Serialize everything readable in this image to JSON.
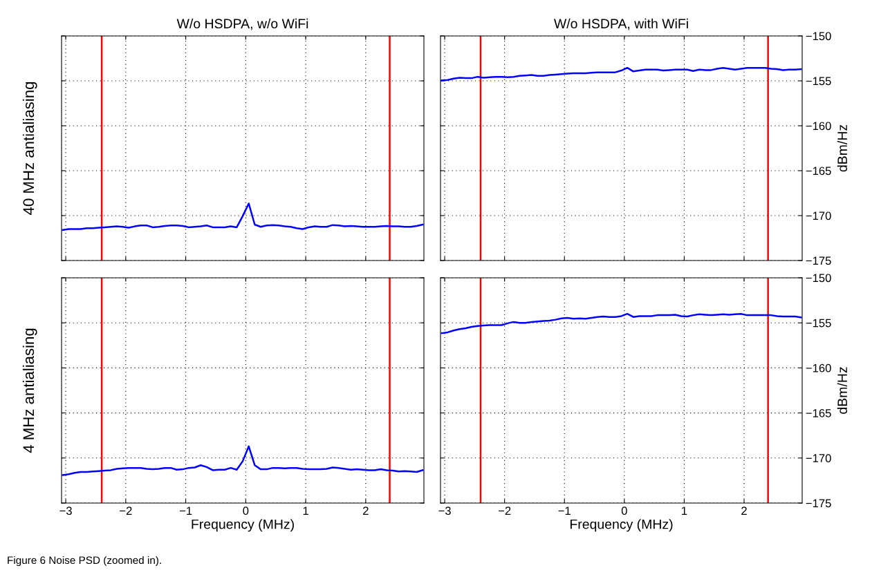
{
  "chart_data": [
    {
      "type": "line",
      "title": "W/o HSDPA, w/o WiFi",
      "ylabel": "40 MHz antialiasing",
      "xlim": [
        -3.07,
        2.97
      ],
      "xticks": [
        -3,
        -2,
        -1,
        0,
        1,
        2
      ],
      "ylim": [
        -175,
        -150
      ],
      "yticks": [
        -175,
        -170,
        -165,
        -160,
        -155,
        -150
      ],
      "tick_labels": false,
      "grid": true,
      "x": [
        -3.05,
        -2.95,
        -2.85,
        -2.75,
        -2.65,
        -2.55,
        -2.45,
        -2.35,
        -2.25,
        -2.15,
        -2.05,
        -1.95,
        -1.85,
        -1.75,
        -1.65,
        -1.55,
        -1.45,
        -1.35,
        -1.25,
        -1.15,
        -1.05,
        -0.95,
        -0.85,
        -0.75,
        -0.65,
        -0.55,
        -0.45,
        -0.35,
        -0.25,
        -0.15,
        -0.05,
        0.05,
        0.15,
        0.25,
        0.35,
        0.45,
        0.55,
        0.65,
        0.75,
        0.85,
        0.95,
        1.05,
        1.15,
        1.25,
        1.35,
        1.45,
        1.55,
        1.65,
        1.75,
        1.85,
        1.95,
        2.05,
        2.15,
        2.25,
        2.35,
        2.45,
        2.55,
        2.65,
        2.75,
        2.85,
        2.95
      ],
      "series": [
        {
          "color": "#0000ff",
          "values": [
            -171.6,
            -171.5,
            -171.5,
            -171.5,
            -171.4,
            -171.4,
            -171.35,
            -171.3,
            -171.25,
            -171.2,
            -171.25,
            -171.35,
            -171.2,
            -171.1,
            -171.1,
            -171.3,
            -171.25,
            -171.15,
            -171.1,
            -171.1,
            -171.15,
            -171.3,
            -171.25,
            -171.2,
            -171.1,
            -171.3,
            -171.3,
            -171.3,
            -171.2,
            -171.3,
            -170.05,
            -168.65,
            -171.0,
            -171.25,
            -171.1,
            -171.05,
            -171.1,
            -171.2,
            -171.25,
            -171.4,
            -171.5,
            -171.3,
            -171.2,
            -171.25,
            -171.25,
            -171.05,
            -171.1,
            -171.2,
            -171.15,
            -171.2,
            -171.25,
            -171.25,
            -171.25,
            -171.2,
            -171.15,
            -171.2,
            -171.2,
            -171.25,
            -171.25,
            -171.15,
            -171.0
          ]
        }
      ],
      "ref_lines": [
        {
          "axis": "x",
          "value": -2.4,
          "color": "#ff0000"
        },
        {
          "axis": "x",
          "value": 2.4,
          "color": "#ff0000"
        }
      ]
    },
    {
      "type": "line",
      "title": "W/o HSDPA, with WiFi",
      "ylabel": "dBm/Hz",
      "xlim": [
        -3.07,
        2.97
      ],
      "xticks": [
        -3,
        -2,
        -1,
        0,
        1,
        2
      ],
      "ylim": [
        -175,
        -150
      ],
      "yticks": [
        -175,
        -170,
        -165,
        -160,
        -155,
        -150
      ],
      "tick_labels": "y",
      "grid": true,
      "x": [
        -3.05,
        -2.95,
        -2.85,
        -2.75,
        -2.65,
        -2.55,
        -2.45,
        -2.35,
        -2.25,
        -2.15,
        -2.05,
        -1.95,
        -1.85,
        -1.75,
        -1.65,
        -1.55,
        -1.45,
        -1.35,
        -1.25,
        -1.15,
        -1.05,
        -0.95,
        -0.85,
        -0.75,
        -0.65,
        -0.55,
        -0.45,
        -0.35,
        -0.25,
        -0.15,
        -0.05,
        0.05,
        0.15,
        0.25,
        0.35,
        0.45,
        0.55,
        0.65,
        0.75,
        0.85,
        0.95,
        1.05,
        1.15,
        1.25,
        1.35,
        1.45,
        1.55,
        1.65,
        1.75,
        1.85,
        1.95,
        2.05,
        2.15,
        2.25,
        2.35,
        2.45,
        2.55,
        2.65,
        2.75,
        2.85,
        2.95
      ],
      "series": [
        {
          "color": "#0000ff",
          "values": [
            -154.95,
            -154.9,
            -154.75,
            -154.65,
            -154.7,
            -154.7,
            -154.55,
            -154.65,
            -154.6,
            -154.55,
            -154.55,
            -154.6,
            -154.55,
            -154.45,
            -154.4,
            -154.35,
            -154.45,
            -154.45,
            -154.35,
            -154.3,
            -154.25,
            -154.2,
            -154.15,
            -154.15,
            -154.15,
            -154.1,
            -154.05,
            -154.05,
            -154.05,
            -154.05,
            -153.85,
            -153.55,
            -153.95,
            -153.85,
            -153.75,
            -153.75,
            -153.75,
            -153.85,
            -153.8,
            -153.75,
            -153.75,
            -153.75,
            -153.9,
            -153.75,
            -153.8,
            -153.8,
            -153.65,
            -153.55,
            -153.65,
            -153.75,
            -153.65,
            -153.55,
            -153.55,
            -153.55,
            -153.55,
            -153.65,
            -153.7,
            -153.8,
            -153.75,
            -153.75,
            -153.7
          ]
        }
      ],
      "ref_lines": [
        {
          "axis": "x",
          "value": -2.4,
          "color": "#ff0000"
        },
        {
          "axis": "x",
          "value": 2.4,
          "color": "#ff0000"
        }
      ]
    },
    {
      "type": "line",
      "ylabel": "4 MHz antialiasing",
      "xlabel": "Frequency (MHz)",
      "xlim": [
        -3.07,
        2.97
      ],
      "xticks": [
        -3,
        -2,
        -1,
        0,
        1,
        2
      ],
      "ylim": [
        -175,
        -150
      ],
      "yticks": [
        -175,
        -170,
        -165,
        -160,
        -155,
        -150
      ],
      "tick_labels": "x",
      "grid": true,
      "x": [
        -3.05,
        -2.95,
        -2.85,
        -2.75,
        -2.65,
        -2.55,
        -2.45,
        -2.35,
        -2.25,
        -2.15,
        -2.05,
        -1.95,
        -1.85,
        -1.75,
        -1.65,
        -1.55,
        -1.45,
        -1.35,
        -1.25,
        -1.15,
        -1.05,
        -0.95,
        -0.85,
        -0.75,
        -0.65,
        -0.55,
        -0.45,
        -0.35,
        -0.25,
        -0.15,
        -0.05,
        0.05,
        0.15,
        0.25,
        0.35,
        0.45,
        0.55,
        0.65,
        0.75,
        0.85,
        0.95,
        1.05,
        1.15,
        1.25,
        1.35,
        1.45,
        1.55,
        1.65,
        1.75,
        1.85,
        1.95,
        2.05,
        2.15,
        2.25,
        2.35,
        2.45,
        2.55,
        2.65,
        2.75,
        2.85,
        2.95
      ],
      "series": [
        {
          "color": "#0000ff",
          "values": [
            -171.9,
            -171.8,
            -171.65,
            -171.55,
            -171.55,
            -171.5,
            -171.45,
            -171.4,
            -171.35,
            -171.2,
            -171.15,
            -171.1,
            -171.1,
            -171.1,
            -171.2,
            -171.25,
            -171.2,
            -171.1,
            -171.1,
            -171.3,
            -171.25,
            -171.1,
            -171.05,
            -170.8,
            -171.0,
            -171.35,
            -171.3,
            -171.3,
            -171.1,
            -171.3,
            -170.35,
            -168.7,
            -170.8,
            -171.25,
            -171.25,
            -171.1,
            -171.1,
            -171.15,
            -171.1,
            -171.1,
            -171.2,
            -171.25,
            -171.25,
            -171.25,
            -171.2,
            -171.05,
            -171.1,
            -171.2,
            -171.3,
            -171.25,
            -171.3,
            -171.35,
            -171.35,
            -171.25,
            -171.35,
            -171.4,
            -171.5,
            -171.45,
            -171.5,
            -171.55,
            -171.35
          ]
        }
      ],
      "ref_lines": [
        {
          "axis": "x",
          "value": -2.4,
          "color": "#ff0000"
        },
        {
          "axis": "x",
          "value": 2.4,
          "color": "#ff0000"
        }
      ],
      "annotations": [
        "Figure 6 Noise PSD (zoomed in)."
      ]
    },
    {
      "type": "line",
      "xlabel": "Frequency (MHz)",
      "ylabel": "dBm/Hz",
      "xlim": [
        -3.07,
        2.97
      ],
      "xticks": [
        -3,
        -2,
        -1,
        0,
        1,
        2
      ],
      "ylim": [
        -175,
        -150
      ],
      "yticks": [
        -175,
        -170,
        -165,
        -160,
        -155,
        -150
      ],
      "grid": true,
      "x": [
        -3.05,
        -2.95,
        -2.85,
        -2.75,
        -2.65,
        -2.55,
        -2.45,
        -2.35,
        -2.25,
        -2.15,
        -2.05,
        -1.95,
        -1.85,
        -1.75,
        -1.65,
        -1.55,
        -1.45,
        -1.35,
        -1.25,
        -1.15,
        -1.05,
        -0.95,
        -0.85,
        -0.75,
        -0.65,
        -0.55,
        -0.45,
        -0.35,
        -0.25,
        -0.15,
        -0.05,
        0.05,
        0.15,
        0.25,
        0.35,
        0.45,
        0.55,
        0.65,
        0.75,
        0.85,
        0.95,
        1.05,
        1.15,
        1.25,
        1.35,
        1.45,
        1.55,
        1.65,
        1.75,
        1.85,
        1.95,
        2.05,
        2.15,
        2.25,
        2.35,
        2.45,
        2.55,
        2.65,
        2.75,
        2.85,
        2.95
      ],
      "series": [
        {
          "color": "#0000ff",
          "values": [
            -156.15,
            -156.05,
            -155.85,
            -155.7,
            -155.6,
            -155.45,
            -155.35,
            -155.3,
            -155.25,
            -155.25,
            -155.25,
            -155.05,
            -154.9,
            -155.0,
            -155.0,
            -154.9,
            -154.85,
            -154.8,
            -154.75,
            -154.65,
            -154.5,
            -154.45,
            -154.55,
            -154.5,
            -154.55,
            -154.45,
            -154.35,
            -154.3,
            -154.35,
            -154.35,
            -154.25,
            -154.0,
            -154.35,
            -154.25,
            -154.25,
            -154.25,
            -154.15,
            -154.15,
            -154.15,
            -154.1,
            -154.25,
            -154.3,
            -154.15,
            -154.05,
            -154.1,
            -154.15,
            -154.1,
            -154.05,
            -154.1,
            -154.05,
            -154.0,
            -154.15,
            -154.15,
            -154.15,
            -154.15,
            -154.15,
            -154.25,
            -154.3,
            -154.3,
            -154.3,
            -154.4
          ]
        }
      ],
      "ref_lines": [
        {
          "axis": "x",
          "value": -2.4,
          "color": "#ff0000"
        },
        {
          "axis": "x",
          "value": 2.4,
          "color": "#ff0000"
        }
      ]
    }
  ]
}
